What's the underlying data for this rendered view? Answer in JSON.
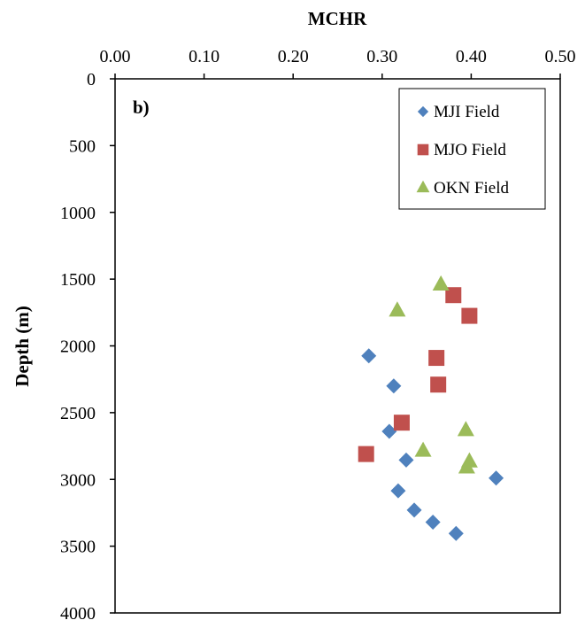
{
  "chart_data": {
    "type": "scatter",
    "panel_label": "b)",
    "xlabel": "MCHR",
    "ylabel": "Depth (m)",
    "x_axis_position": "top",
    "y_axis_inverted": true,
    "xlim": [
      0.0,
      0.5
    ],
    "ylim": [
      0,
      4000
    ],
    "x_ticks": [
      "0.00",
      "0.10",
      "0.20",
      "0.30",
      "0.40",
      "0.50"
    ],
    "y_ticks": [
      "0",
      "500",
      "1000",
      "1500",
      "2000",
      "2500",
      "3000",
      "3500",
      "4000"
    ],
    "grid": false,
    "legend_position": "top-right",
    "series": [
      {
        "name": "MJI Field",
        "marker": "diamond",
        "color": "#4F81BD",
        "points": [
          [
            0.285,
            2075
          ],
          [
            0.313,
            2300
          ],
          [
            0.308,
            2640
          ],
          [
            0.327,
            2855
          ],
          [
            0.428,
            2990
          ],
          [
            0.318,
            3085
          ],
          [
            0.336,
            3230
          ],
          [
            0.357,
            3320
          ],
          [
            0.383,
            3405
          ]
        ]
      },
      {
        "name": "MJO Field",
        "marker": "square",
        "color": "#C0504D",
        "points": [
          [
            0.38,
            1620
          ],
          [
            0.398,
            1775
          ],
          [
            0.361,
            2090
          ],
          [
            0.363,
            2290
          ],
          [
            0.322,
            2575
          ],
          [
            0.282,
            2810
          ]
        ]
      },
      {
        "name": "OKN Field",
        "marker": "triangle",
        "color": "#9BBB59",
        "points": [
          [
            0.366,
            1535
          ],
          [
            0.317,
            1730
          ],
          [
            0.394,
            2625
          ],
          [
            0.346,
            2780
          ],
          [
            0.398,
            2860
          ],
          [
            0.395,
            2905
          ]
        ]
      }
    ]
  }
}
